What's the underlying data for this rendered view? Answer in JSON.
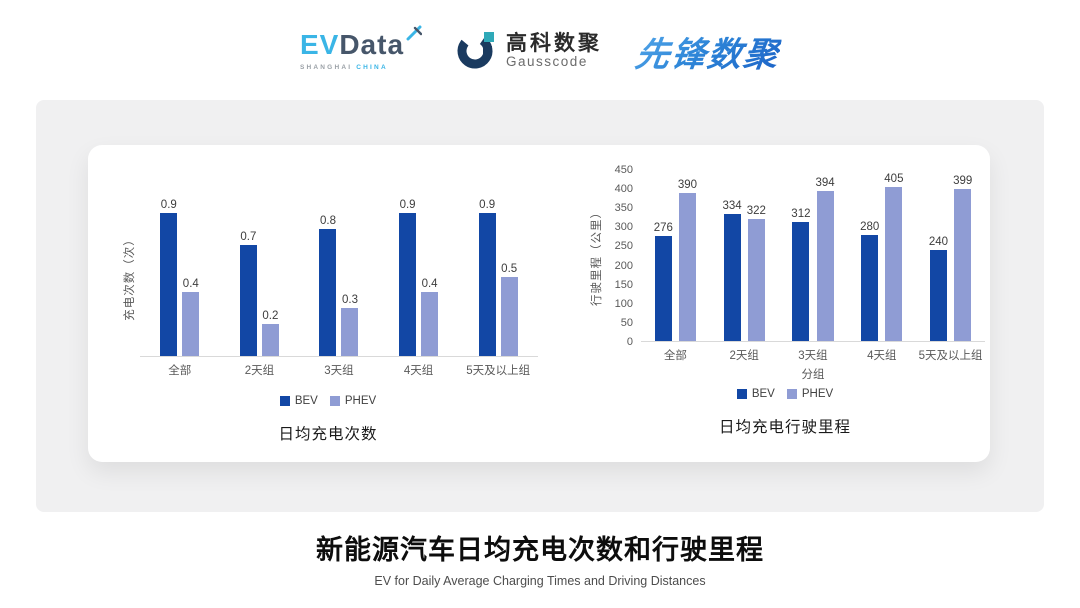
{
  "header": {
    "evdata_logo": {
      "ev": "EV",
      "data": "Data",
      "tagline_left": "SHANGHAI",
      "tagline_right": "CHINA"
    },
    "gausscode_logo": {
      "name_cn": "高科数聚",
      "name_en": "Gausscode"
    },
    "pioneer_logo": {
      "name_cn": "先锋数聚"
    }
  },
  "colors": {
    "bev": "#1247A5",
    "phev": "#8F9CD4",
    "card_bg": "#F0F0F1",
    "axis_line": "#D9D9D9",
    "value_text": "#3D3D3D",
    "tick_text": "#595959",
    "evdata_cyan": "#3AB5E6",
    "evdata_slate": "#46566A",
    "gausscode_navy": "#1A3A5F",
    "gausscode_teal": "#2FA9B8",
    "pioneer_blue": "#2E86D8"
  },
  "chart_data": [
    {
      "type": "bar",
      "title": "日均充电次数",
      "categories": [
        "全部",
        "2天组",
        "3天组",
        "4天组",
        "5天及以上组"
      ],
      "series": [
        {
          "name": "BEV",
          "color_key": "bev",
          "values": [
            0.9,
            0.7,
            0.8,
            0.9,
            0.9
          ]
        },
        {
          "name": "PHEV",
          "color_key": "phev",
          "values": [
            0.4,
            0.2,
            0.3,
            0.4,
            0.5
          ]
        }
      ],
      "ylabel": "充电次数（次）",
      "xlabel": "",
      "ylim": [
        0,
        1.0
      ],
      "yticks": [],
      "grid": false,
      "value_labels": true,
      "legend_position": "bottom"
    },
    {
      "type": "bar",
      "title": "日均充电行驶里程",
      "categories": [
        "全部",
        "2天组",
        "3天组",
        "4天组",
        "5天及以上组"
      ],
      "series": [
        {
          "name": "BEV",
          "color_key": "bev",
          "values": [
            276,
            334,
            312,
            280,
            240
          ]
        },
        {
          "name": "PHEV",
          "color_key": "phev",
          "values": [
            390,
            322,
            394,
            405,
            399
          ]
        }
      ],
      "ylabel": "行驶里程（公里）",
      "xlabel": "分组",
      "ylim": [
        0,
        450
      ],
      "yticks": [
        0,
        50,
        100,
        150,
        200,
        250,
        300,
        350,
        400,
        450
      ],
      "grid": false,
      "value_labels": true,
      "legend_position": "bottom"
    }
  ],
  "footer": {
    "title": "新能源汽车日均充电次数和行驶里程",
    "subtitle": "EV for Daily Average Charging Times and Driving Distances"
  }
}
